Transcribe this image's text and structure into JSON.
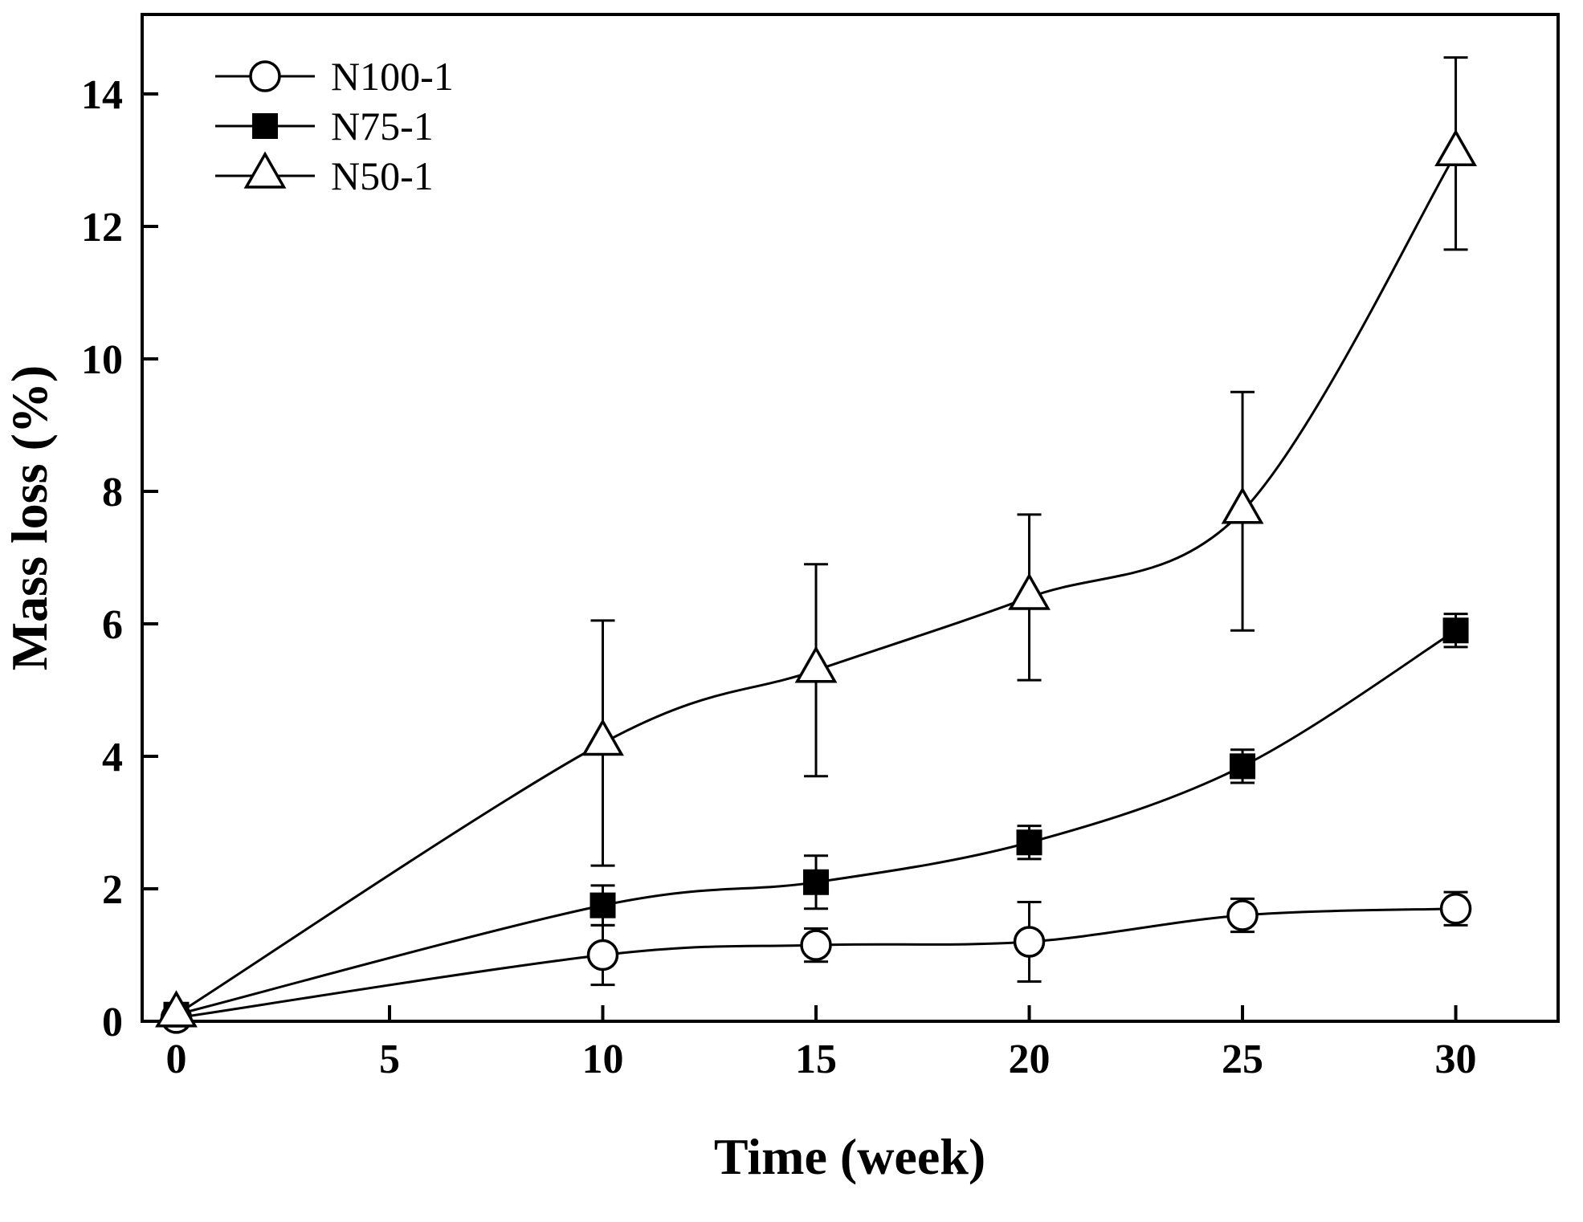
{
  "chart_data": {
    "type": "line",
    "xlabel": "Time (week)",
    "ylabel": "Mass loss (%)",
    "xlim": [
      -0.8,
      32.4
    ],
    "ylim": [
      0,
      15.2
    ],
    "xticks": [
      0,
      5,
      10,
      15,
      20,
      25,
      30
    ],
    "yticks": [
      0,
      2,
      4,
      6,
      8,
      10,
      12,
      14
    ],
    "x": [
      0,
      10,
      15,
      20,
      25,
      30
    ],
    "grid": false,
    "legend_position": "top-left",
    "frame": true,
    "colors": {
      "line": "#000000",
      "background": "#ffffff"
    },
    "series": [
      {
        "name": "N100-1",
        "marker": "open-circle",
        "values": [
          0.05,
          1.0,
          1.15,
          1.2,
          1.6,
          1.7
        ],
        "errors": [
          0,
          0.45,
          0.25,
          0.6,
          0.25,
          0.25
        ]
      },
      {
        "name": "N75-1",
        "marker": "filled-square",
        "values": [
          0.1,
          1.75,
          2.1,
          2.7,
          3.85,
          5.9
        ],
        "errors": [
          0,
          0.3,
          0.4,
          0.25,
          0.25,
          0.25
        ]
      },
      {
        "name": "N50-1",
        "marker": "open-triangle",
        "values": [
          0.1,
          4.2,
          5.3,
          6.4,
          7.7,
          13.1
        ],
        "errors": [
          0,
          1.85,
          1.6,
          1.25,
          1.8,
          1.45
        ]
      }
    ]
  }
}
